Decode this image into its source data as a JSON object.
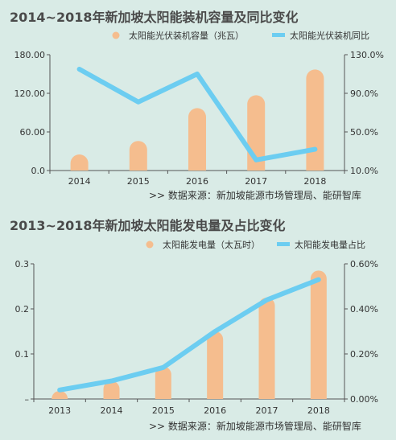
{
  "chart_data": [
    {
      "type": "bar",
      "title": "2014~2018年新加坡太阳能装机容量及同比变化",
      "categories": [
        "2014",
        "2015",
        "2016",
        "2017",
        "2018"
      ],
      "series": [
        {
          "name": "太阳能光伏装机容量（兆瓦）",
          "type": "bar",
          "axis": "left",
          "values": [
            25,
            46,
            97,
            117,
            157
          ]
        },
        {
          "name": "太阳能光伏装机同比",
          "type": "line",
          "axis": "right",
          "values": [
            1.15,
            0.81,
            1.1,
            0.21,
            0.32
          ]
        }
      ],
      "y_left": {
        "range": [
          0,
          180
        ],
        "ticks": [
          "0.0",
          "60.00",
          "120.00",
          "180.00"
        ],
        "tick_values": [
          0,
          60,
          120,
          180
        ]
      },
      "y_right": {
        "range": [
          0.1,
          1.3
        ],
        "ticks": [
          "10.0%",
          "50.0%",
          "90.0%",
          "130.0%"
        ],
        "tick_values": [
          0.1,
          0.5,
          0.9,
          1.3
        ]
      },
      "legend_position": "top-right",
      "grid": false,
      "source": ">>  数据来源：新加坡能源市场管理局、能研智库"
    },
    {
      "type": "bar",
      "title": "2013~2018年新加坡太阳能发电量及占比变化",
      "categories": [
        "2013",
        "2014",
        "2015",
        "2016",
        "2017",
        "2018"
      ],
      "series": [
        {
          "name": "太阳能发电量（太瓦时）",
          "type": "bar",
          "axis": "left",
          "values": [
            0.015,
            0.04,
            0.072,
            0.15,
            0.225,
            0.285
          ]
        },
        {
          "name": "太阳能发电量占比",
          "type": "line",
          "axis": "right",
          "values": [
            0.0004,
            0.0008,
            0.0014,
            0.003,
            0.0044,
            0.0053
          ]
        }
      ],
      "y_left": {
        "range": [
          0,
          0.3
        ],
        "ticks": [
          "–",
          "0.1",
          "0.2",
          "0.3"
        ],
        "tick_values": [
          0,
          0.1,
          0.2,
          0.3
        ]
      },
      "y_right": {
        "range": [
          0,
          0.006
        ],
        "ticks": [
          "0.00%",
          "0.20%",
          "0.40%",
          "0.60%"
        ],
        "tick_values": [
          0,
          0.002,
          0.004,
          0.006
        ]
      },
      "legend_position": "top-right",
      "grid": false,
      "source": ">>  数据来源：新加坡能源市场管理局、能研智库"
    }
  ],
  "colors": {
    "bar": "#f5bd8e",
    "line": "#6ccdf1",
    "axis": "#555555",
    "background": "#d9ebe6",
    "title": "#4a4a4a"
  }
}
